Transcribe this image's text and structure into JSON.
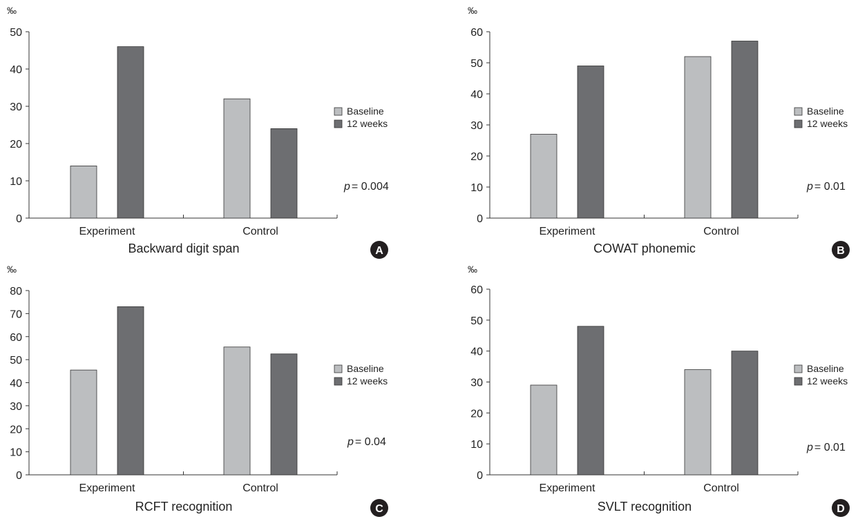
{
  "colors": {
    "baseline": "#bcbec0",
    "weeks12": "#6d6e71",
    "axis": "#333333",
    "badge": "#231f20"
  },
  "chart_data": [
    {
      "type": "bar",
      "panel": "A",
      "title": "Backward digit span",
      "unit": "‰",
      "categories": [
        "Experiment",
        "Control"
      ],
      "series": [
        {
          "name": "Baseline",
          "values": [
            14,
            32
          ]
        },
        {
          "name": "12 weeks",
          "values": [
            46,
            24
          ]
        }
      ],
      "ylim": [
        0,
        50
      ],
      "yticks": [
        0,
        10,
        20,
        30,
        40,
        50
      ],
      "p_label": "p",
      "p_value": "= 0.004",
      "legend": "right",
      "grid": false
    },
    {
      "type": "bar",
      "panel": "B",
      "title": "COWAT phonemic",
      "unit": "‰",
      "categories": [
        "Experiment",
        "Control"
      ],
      "series": [
        {
          "name": "Baseline",
          "values": [
            27,
            52
          ]
        },
        {
          "name": "12 weeks",
          "values": [
            49,
            57
          ]
        }
      ],
      "ylim": [
        0,
        60
      ],
      "yticks": [
        0,
        10,
        20,
        30,
        40,
        50,
        60
      ],
      "p_label": "p",
      "p_value": "= 0.01",
      "legend": "right",
      "grid": false
    },
    {
      "type": "bar",
      "panel": "C",
      "title": "RCFT recognition",
      "unit": "‰",
      "categories": [
        "Experiment",
        "Control"
      ],
      "series": [
        {
          "name": "Baseline",
          "values": [
            45.5,
            55.5
          ]
        },
        {
          "name": "12 weeks",
          "values": [
            73,
            52.5
          ]
        }
      ],
      "ylim": [
        0,
        80
      ],
      "yticks": [
        0,
        10,
        20,
        30,
        40,
        50,
        60,
        70,
        80
      ],
      "p_label": "p",
      "p_value": "= 0.04",
      "legend": "right",
      "grid": false
    },
    {
      "type": "bar",
      "panel": "D",
      "title": "SVLT recognition",
      "unit": "‰",
      "categories": [
        "Experiment",
        "Control"
      ],
      "series": [
        {
          "name": "Baseline",
          "values": [
            29,
            34
          ]
        },
        {
          "name": "12 weeks",
          "values": [
            48,
            40
          ]
        }
      ],
      "ylim": [
        0,
        60
      ],
      "yticks": [
        0,
        10,
        20,
        30,
        40,
        50,
        60
      ],
      "p_label": "p",
      "p_value": "= 0.01",
      "legend": "right",
      "grid": false
    }
  ]
}
